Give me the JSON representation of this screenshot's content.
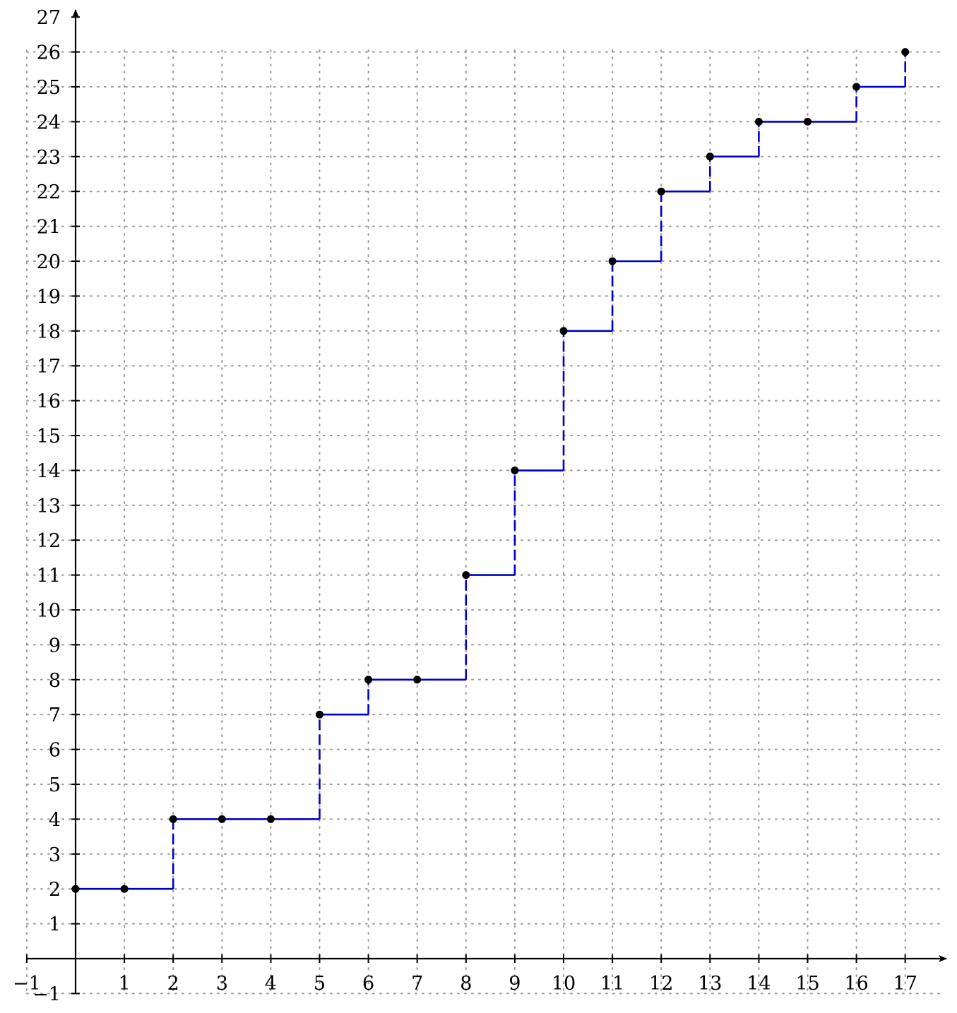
{
  "chart_data": {
    "type": "line",
    "step": "right-continuous staircase",
    "x": [
      0,
      1,
      2,
      3,
      4,
      5,
      6,
      7,
      8,
      9,
      10,
      11,
      12,
      13,
      14,
      15,
      16,
      17
    ],
    "series": [
      {
        "values": [
          2,
          2,
          4,
          4,
          4,
          7,
          8,
          8,
          11,
          14,
          18,
          20,
          22,
          23,
          24,
          24,
          25,
          26
        ],
        "color": "#0000cc",
        "markers": "filled-circle",
        "marker_color": "#000000"
      }
    ],
    "xlim": [
      -1,
      18
    ],
    "ylim": [
      -1,
      27
    ],
    "x_ticks": [
      -1,
      1,
      2,
      3,
      4,
      5,
      6,
      7,
      8,
      9,
      10,
      11,
      12,
      13,
      14,
      15,
      16,
      17
    ],
    "x_tick_labels": [
      "−1",
      "1",
      "2",
      "3",
      "4",
      "5",
      "6",
      "7",
      "8",
      "9",
      "10",
      "11",
      "12",
      "13",
      "14",
      "15",
      "16",
      "17"
    ],
    "y_ticks": [
      -1,
      1,
      2,
      3,
      4,
      5,
      6,
      7,
      8,
      9,
      10,
      11,
      12,
      13,
      14,
      15,
      16,
      17,
      18,
      19,
      20,
      21,
      22,
      23,
      24,
      25,
      26,
      27
    ],
    "y_tick_labels": [
      "−1",
      "1",
      "2",
      "3",
      "4",
      "5",
      "6",
      "7",
      "8",
      "9",
      "10",
      "11",
      "12",
      "13",
      "14",
      "15",
      "16",
      "17",
      "18",
      "19",
      "20",
      "21",
      "22",
      "23",
      "24",
      "25",
      "26",
      "27"
    ],
    "grid": true,
    "title": "",
    "xlabel": "",
    "ylabel": ""
  }
}
